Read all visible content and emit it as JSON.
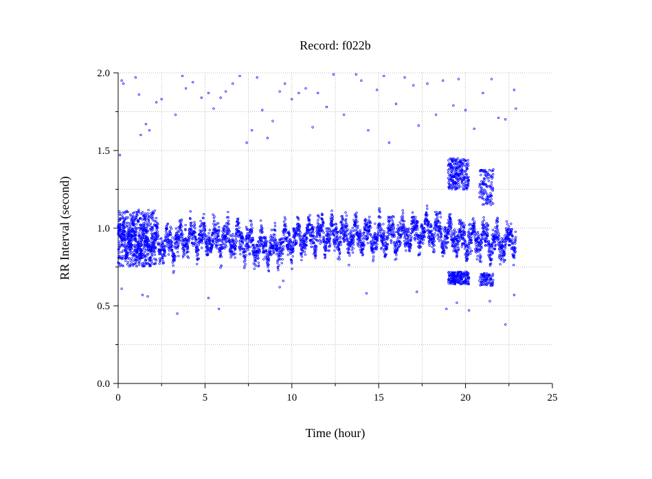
{
  "chart_data": {
    "type": "scatter",
    "title": "Record:  f022b",
    "xlabel": "Time (hour)",
    "ylabel": "RR Interval (second)",
    "xlim": [
      0,
      25
    ],
    "ylim": [
      0.0,
      2.0
    ],
    "xticks": [
      0,
      5,
      10,
      15,
      20,
      25
    ],
    "xtick_labels": [
      "0",
      "5",
      "10",
      "15",
      "20",
      "25"
    ],
    "yticks": [
      0.0,
      0.5,
      1.0,
      1.5,
      2.0
    ],
    "ytick_labels": [
      "0.0",
      "0.5",
      "1.0",
      "1.5",
      "2.0"
    ],
    "grid": true,
    "marker_color": "#0000ff",
    "marker": "open-circle",
    "series": [
      {
        "baseline": [
          [
            0.0,
            0.93
          ],
          [
            1,
            0.92
          ],
          [
            2,
            0.9
          ],
          [
            3,
            0.9
          ],
          [
            4,
            0.94
          ],
          [
            5,
            0.93
          ],
          [
            6,
            0.93
          ],
          [
            7,
            0.92
          ],
          [
            8,
            0.88
          ],
          [
            9,
            0.87
          ],
          [
            10,
            0.93
          ],
          [
            11,
            0.95
          ],
          [
            12,
            0.96
          ],
          [
            13,
            0.95
          ],
          [
            14,
            0.96
          ],
          [
            15,
            0.94
          ],
          [
            16,
            0.96
          ],
          [
            17,
            0.97
          ],
          [
            18,
            0.98
          ],
          [
            19,
            0.95
          ],
          [
            20,
            0.93
          ],
          [
            21,
            0.93
          ],
          [
            22,
            0.9
          ],
          [
            22.9,
            0.93
          ]
        ],
        "spread": 0.1,
        "outliers_high": [
          [
            0.1,
            1.47
          ],
          [
            0.2,
            1.95
          ],
          [
            0.3,
            1.93
          ],
          [
            1.0,
            1.97
          ],
          [
            1.2,
            1.86
          ],
          [
            1.3,
            1.6
          ],
          [
            1.6,
            1.67
          ],
          [
            1.8,
            1.63
          ],
          [
            2.2,
            1.81
          ],
          [
            2.5,
            1.83
          ],
          [
            3.3,
            1.73
          ],
          [
            3.7,
            1.98
          ],
          [
            3.9,
            1.9
          ],
          [
            4.3,
            1.94
          ],
          [
            4.8,
            1.84
          ],
          [
            5.2,
            1.87
          ],
          [
            5.5,
            1.77
          ],
          [
            5.9,
            1.84
          ],
          [
            6.2,
            1.88
          ],
          [
            6.6,
            1.93
          ],
          [
            7.0,
            1.98
          ],
          [
            7.4,
            1.55
          ],
          [
            7.7,
            1.63
          ],
          [
            8.0,
            1.97
          ],
          [
            8.3,
            1.76
          ],
          [
            8.6,
            1.58
          ],
          [
            8.9,
            1.69
          ],
          [
            9.3,
            1.88
          ],
          [
            9.6,
            1.93
          ],
          [
            10.0,
            1.83
          ],
          [
            10.4,
            1.87
          ],
          [
            10.8,
            1.9
          ],
          [
            11.2,
            1.65
          ],
          [
            11.5,
            1.87
          ],
          [
            12.0,
            1.78
          ],
          [
            12.4,
            1.99
          ],
          [
            13.0,
            1.73
          ],
          [
            13.7,
            1.99
          ],
          [
            14.0,
            1.95
          ],
          [
            14.4,
            1.63
          ],
          [
            14.9,
            1.89
          ],
          [
            15.3,
            1.98
          ],
          [
            15.6,
            1.55
          ],
          [
            16.0,
            1.8
          ],
          [
            16.5,
            1.97
          ],
          [
            17.0,
            1.92
          ],
          [
            17.3,
            1.66
          ],
          [
            17.8,
            1.93
          ],
          [
            18.3,
            1.73
          ],
          [
            18.7,
            1.95
          ],
          [
            19.3,
            1.79
          ],
          [
            19.6,
            1.96
          ],
          [
            20.0,
            1.76
          ],
          [
            20.5,
            1.64
          ],
          [
            21.0,
            1.87
          ],
          [
            21.5,
            1.96
          ],
          [
            21.9,
            1.71
          ],
          [
            22.3,
            1.7
          ],
          [
            22.8,
            1.89
          ],
          [
            22.9,
            1.77
          ]
        ],
        "outliers_low": [
          [
            0.2,
            0.61
          ],
          [
            1.4,
            0.57
          ],
          [
            1.7,
            0.56
          ],
          [
            3.4,
            0.45
          ],
          [
            5.2,
            0.55
          ],
          [
            5.8,
            0.48
          ],
          [
            9.3,
            0.62
          ],
          [
            9.5,
            0.66
          ],
          [
            14.3,
            0.58
          ],
          [
            17.2,
            0.59
          ],
          [
            18.9,
            0.48
          ],
          [
            19.5,
            0.52
          ],
          [
            20.2,
            0.47
          ],
          [
            21.4,
            0.53
          ],
          [
            22.3,
            0.38
          ],
          [
            22.8,
            0.57
          ]
        ],
        "clusters": [
          {
            "x": [
              19.0,
              20.2
            ],
            "y": [
              1.25,
              1.45
            ],
            "count": 240
          },
          {
            "x": [
              19.0,
              20.2
            ],
            "y": [
              0.64,
              0.72
            ],
            "count": 180
          },
          {
            "x": [
              20.8,
              21.6
            ],
            "y": [
              1.15,
              1.38
            ],
            "count": 110
          },
          {
            "x": [
              20.8,
              21.6
            ],
            "y": [
              0.63,
              0.71
            ],
            "count": 80
          },
          {
            "x": [
              0.0,
              2.2
            ],
            "y": [
              0.75,
              1.12
            ],
            "count": 400
          }
        ]
      }
    ]
  }
}
